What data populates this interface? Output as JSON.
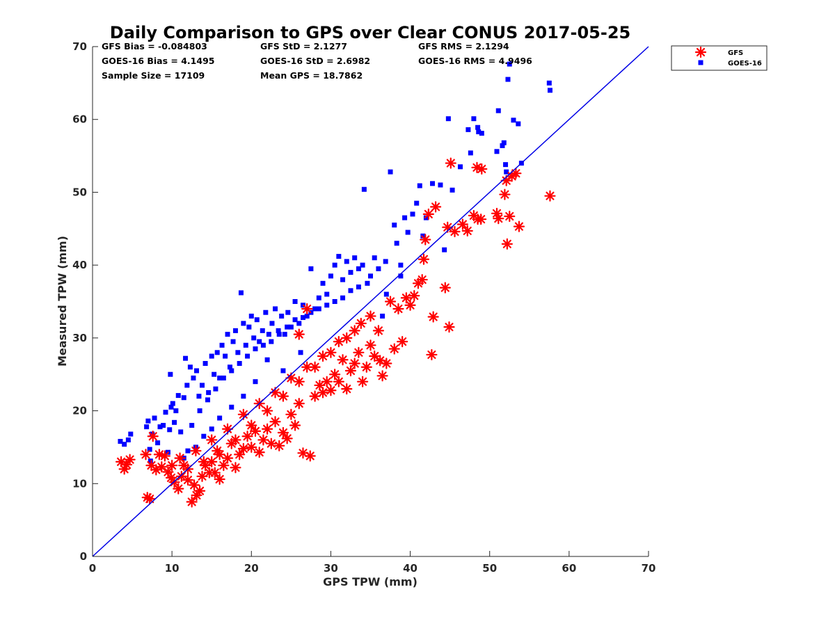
{
  "chart_data": {
    "type": "scatter",
    "title": "Daily Comparison to GPS over Clear CONUS 2017-05-25",
    "xlabel": "GPS TPW (mm)",
    "ylabel": "Measured TPW (mm)",
    "xlim": [
      0,
      70
    ],
    "ylim": [
      0,
      70
    ],
    "xticks": [
      "0",
      "10",
      "20",
      "30",
      "40",
      "50",
      "60",
      "70"
    ],
    "yticks": [
      "0",
      "10",
      "20",
      "30",
      "40",
      "50",
      "60",
      "70"
    ],
    "grid": false,
    "legend_position": "top-right, outside plot",
    "stats": [
      [
        "GFS Bias = -0.084803",
        "GFS StD = 2.1277",
        "GFS RMS = 2.1294"
      ],
      [
        "GOES-16 Bias = 4.1495",
        "GOES-16 StD = 2.6982",
        "GOES-16 RMS = 4.9496"
      ],
      [
        "Sample Size = 17109",
        "Mean GPS = 18.7862"
      ]
    ],
    "reference_line": {
      "name": "1:1 line",
      "color": "#0000e6",
      "points": [
        [
          0,
          0
        ],
        [
          70,
          70
        ]
      ]
    },
    "series": [
      {
        "name": "GOES-16",
        "marker": "square",
        "color": "#0000ff",
        "points": [
          [
            3.5,
            15.8
          ],
          [
            4.0,
            15.4
          ],
          [
            4.5,
            16.0
          ],
          [
            4.8,
            16.8
          ],
          [
            6.8,
            17.8
          ],
          [
            7.0,
            18.6
          ],
          [
            7.2,
            14.7
          ],
          [
            7.3,
            13.1
          ],
          [
            7.5,
            16.8
          ],
          [
            7.8,
            19.0
          ],
          [
            8.2,
            15.6
          ],
          [
            8.5,
            17.8
          ],
          [
            8.9,
            18.0
          ],
          [
            9.2,
            19.8
          ],
          [
            9.5,
            14.3
          ],
          [
            9.7,
            17.4
          ],
          [
            9.8,
            25.0
          ],
          [
            9.9,
            20.5
          ],
          [
            10.1,
            21.0
          ],
          [
            10.3,
            18.4
          ],
          [
            10.5,
            20.0
          ],
          [
            10.8,
            22.1
          ],
          [
            11.1,
            17.1
          ],
          [
            11.5,
            21.8
          ],
          [
            11.7,
            27.2
          ],
          [
            11.9,
            23.5
          ],
          [
            12.3,
            26.0
          ],
          [
            12.7,
            24.5
          ],
          [
            13.1,
            25.5
          ],
          [
            13.4,
            22.0
          ],
          [
            13.8,
            23.5
          ],
          [
            14.2,
            26.5
          ],
          [
            14.6,
            22.5
          ],
          [
            15.0,
            27.5
          ],
          [
            15.3,
            25.0
          ],
          [
            15.7,
            28.0
          ],
          [
            16.0,
            24.5
          ],
          [
            16.3,
            29.0
          ],
          [
            16.7,
            27.5
          ],
          [
            17.0,
            30.5
          ],
          [
            17.3,
            26.0
          ],
          [
            17.7,
            29.5
          ],
          [
            18.0,
            31.0
          ],
          [
            18.3,
            28.0
          ],
          [
            18.7,
            36.2
          ],
          [
            19.0,
            32.0
          ],
          [
            19.3,
            29.0
          ],
          [
            19.7,
            31.5
          ],
          [
            20.0,
            33.0
          ],
          [
            20.3,
            30.0
          ],
          [
            20.7,
            32.5
          ],
          [
            21.0,
            29.5
          ],
          [
            21.4,
            31.0
          ],
          [
            21.8,
            33.5
          ],
          [
            22.2,
            30.5
          ],
          [
            22.6,
            32.0
          ],
          [
            23.0,
            34.0
          ],
          [
            23.4,
            31.0
          ],
          [
            23.8,
            33.0
          ],
          [
            24.2,
            30.5
          ],
          [
            24.6,
            33.5
          ],
          [
            25.0,
            31.5
          ],
          [
            25.5,
            35.0
          ],
          [
            26.0,
            32.0
          ],
          [
            26.5,
            34.5
          ],
          [
            27.0,
            33.0
          ],
          [
            27.5,
            39.5
          ],
          [
            28.0,
            34.0
          ],
          [
            28.5,
            35.5
          ],
          [
            29.0,
            37.5
          ],
          [
            29.5,
            36.0
          ],
          [
            30.0,
            38.5
          ],
          [
            30.5,
            40.0
          ],
          [
            31.0,
            41.2
          ],
          [
            31.5,
            38.0
          ],
          [
            32.0,
            40.5
          ],
          [
            32.5,
            39.0
          ],
          [
            33.0,
            41.0
          ],
          [
            33.5,
            39.5
          ],
          [
            34.0,
            40.0
          ],
          [
            34.6,
            37.5
          ],
          [
            35.0,
            38.5
          ],
          [
            35.5,
            41.0
          ],
          [
            36.0,
            39.5
          ],
          [
            36.5,
            33.0
          ],
          [
            37.0,
            36.0
          ],
          [
            37.5,
            52.8
          ],
          [
            38.0,
            45.5
          ],
          [
            38.3,
            43.0
          ],
          [
            38.8,
            40.0
          ],
          [
            39.3,
            46.5
          ],
          [
            39.7,
            44.5
          ],
          [
            40.3,
            47.0
          ],
          [
            40.8,
            48.5
          ],
          [
            41.2,
            50.9
          ],
          [
            41.6,
            44.0
          ],
          [
            42.0,
            46.5
          ],
          [
            42.8,
            51.2
          ],
          [
            43.8,
            51.0
          ],
          [
            44.3,
            42.1
          ],
          [
            44.8,
            60.1
          ],
          [
            45.3,
            50.3
          ],
          [
            46.3,
            53.5
          ],
          [
            47.3,
            58.6
          ],
          [
            47.6,
            55.4
          ],
          [
            48.0,
            60.1
          ],
          [
            48.5,
            58.9
          ],
          [
            48.6,
            58.3
          ],
          [
            49.0,
            58.1
          ],
          [
            50.9,
            55.6
          ],
          [
            51.1,
            61.2
          ],
          [
            51.6,
            56.4
          ],
          [
            51.8,
            56.8
          ],
          [
            52.0,
            53.8
          ],
          [
            52.1,
            52.8
          ],
          [
            52.3,
            65.5
          ],
          [
            52.5,
            67.6
          ],
          [
            53.0,
            59.9
          ],
          [
            53.6,
            59.4
          ],
          [
            54.0,
            54.0
          ],
          [
            57.5,
            65.0
          ],
          [
            57.6,
            64.0
          ],
          [
            34.2,
            50.4
          ],
          [
            36.9,
            40.5
          ],
          [
            38.8,
            38.5
          ],
          [
            26.2,
            28.0
          ],
          [
            24.0,
            25.5
          ],
          [
            22.0,
            27.0
          ],
          [
            20.5,
            24.0
          ],
          [
            19.0,
            22.0
          ],
          [
            17.5,
            20.5
          ],
          [
            16.0,
            19.0
          ],
          [
            15.0,
            17.5
          ],
          [
            14.0,
            16.5
          ],
          [
            13.0,
            15.0
          ],
          [
            12.0,
            14.5
          ],
          [
            11.5,
            13.5
          ],
          [
            12.5,
            18.0
          ],
          [
            13.5,
            20.0
          ],
          [
            14.5,
            21.5
          ],
          [
            15.5,
            23.0
          ],
          [
            16.5,
            24.5
          ],
          [
            17.5,
            25.5
          ],
          [
            18.5,
            26.5
          ],
          [
            19.5,
            27.5
          ],
          [
            20.5,
            28.5
          ],
          [
            21.5,
            29.0
          ],
          [
            22.5,
            29.5
          ],
          [
            23.5,
            30.5
          ],
          [
            24.5,
            31.5
          ],
          [
            25.5,
            32.5
          ],
          [
            26.5,
            32.8
          ],
          [
            27.5,
            33.5
          ],
          [
            28.5,
            34.0
          ],
          [
            29.5,
            34.5
          ],
          [
            30.5,
            35.0
          ],
          [
            31.5,
            35.5
          ],
          [
            32.5,
            36.5
          ],
          [
            33.5,
            37.0
          ]
        ]
      },
      {
        "name": "GFS",
        "marker": "asterisk",
        "color": "#ff0000",
        "points": [
          [
            3.6,
            13.0
          ],
          [
            4.0,
            12.0
          ],
          [
            4.3,
            12.6
          ],
          [
            4.7,
            13.3
          ],
          [
            6.7,
            14.0
          ],
          [
            6.9,
            8.1
          ],
          [
            7.2,
            7.9
          ],
          [
            7.4,
            12.5
          ],
          [
            7.6,
            16.5
          ],
          [
            8.0,
            11.9
          ],
          [
            8.4,
            14.0
          ],
          [
            8.7,
            12.3
          ],
          [
            9.1,
            13.8
          ],
          [
            9.5,
            11.6
          ],
          [
            9.9,
            10.8
          ],
          [
            10.3,
            10.2
          ],
          [
            10.8,
            9.3
          ],
          [
            11.2,
            11.0
          ],
          [
            11.5,
            12.5
          ],
          [
            12.0,
            10.5
          ],
          [
            12.5,
            7.5
          ],
          [
            12.8,
            9.8
          ],
          [
            13.1,
            8.4
          ],
          [
            13.5,
            9.0
          ],
          [
            13.8,
            11.0
          ],
          [
            14.2,
            12.5
          ],
          [
            14.7,
            11.5
          ],
          [
            15.0,
            13.0
          ],
          [
            15.4,
            11.5
          ],
          [
            15.7,
            14.5
          ],
          [
            16.0,
            10.6
          ],
          [
            16.5,
            12.5
          ],
          [
            17.0,
            13.5
          ],
          [
            17.5,
            15.5
          ],
          [
            18.0,
            12.2
          ],
          [
            18.5,
            14.0
          ],
          [
            19.0,
            14.8
          ],
          [
            19.5,
            16.5
          ],
          [
            20.0,
            15.0
          ],
          [
            20.5,
            17.2
          ],
          [
            21.0,
            14.3
          ],
          [
            21.5,
            16.0
          ],
          [
            22.0,
            17.5
          ],
          [
            22.5,
            15.5
          ],
          [
            23.0,
            18.5
          ],
          [
            23.5,
            15.2
          ],
          [
            24.0,
            17.0
          ],
          [
            24.5,
            16.2
          ],
          [
            25.0,
            19.5
          ],
          [
            25.5,
            18.0
          ],
          [
            26.0,
            21.0
          ],
          [
            26.5,
            14.2
          ],
          [
            27.4,
            13.8
          ],
          [
            28.0,
            22.0
          ],
          [
            28.6,
            23.5
          ],
          [
            29.0,
            22.5
          ],
          [
            29.5,
            24.0
          ],
          [
            30.0,
            22.8
          ],
          [
            30.5,
            25.0
          ],
          [
            31.0,
            24.0
          ],
          [
            31.5,
            27.0
          ],
          [
            32.0,
            23.0
          ],
          [
            32.5,
            25.5
          ],
          [
            33.0,
            26.5
          ],
          [
            33.5,
            28.0
          ],
          [
            34.0,
            24.0
          ],
          [
            34.5,
            26.0
          ],
          [
            35.0,
            29.0
          ],
          [
            35.5,
            27.5
          ],
          [
            36.0,
            31.0
          ],
          [
            36.5,
            24.8
          ],
          [
            37.0,
            26.5
          ],
          [
            37.5,
            35.0
          ],
          [
            38.0,
            28.5
          ],
          [
            38.5,
            34.0
          ],
          [
            39.0,
            29.5
          ],
          [
            39.5,
            35.5
          ],
          [
            40.0,
            34.5
          ],
          [
            40.5,
            35.8
          ],
          [
            41.0,
            37.5
          ],
          [
            41.5,
            38.0
          ],
          [
            41.7,
            40.8
          ],
          [
            41.9,
            43.5
          ],
          [
            42.3,
            47.0
          ],
          [
            42.7,
            27.7
          ],
          [
            42.9,
            32.9
          ],
          [
            43.2,
            48.0
          ],
          [
            44.4,
            36.9
          ],
          [
            44.7,
            45.2
          ],
          [
            44.9,
            31.5
          ],
          [
            45.1,
            54.0
          ],
          [
            45.6,
            44.6
          ],
          [
            46.6,
            45.6
          ],
          [
            47.2,
            44.7
          ],
          [
            48.0,
            46.8
          ],
          [
            48.4,
            53.4
          ],
          [
            48.5,
            46.3
          ],
          [
            48.9,
            46.3
          ],
          [
            49.0,
            53.2
          ],
          [
            50.9,
            47.1
          ],
          [
            51.1,
            46.4
          ],
          [
            51.9,
            49.7
          ],
          [
            52.1,
            51.6
          ],
          [
            52.2,
            42.9
          ],
          [
            52.5,
            46.7
          ],
          [
            52.8,
            52.2
          ],
          [
            53.3,
            52.6
          ],
          [
            53.7,
            45.3
          ],
          [
            57.6,
            49.5
          ],
          [
            36.2,
            26.9
          ],
          [
            33.8,
            32.0
          ],
          [
            32.0,
            30.0
          ],
          [
            30.0,
            28.0
          ],
          [
            28.0,
            26.0
          ],
          [
            26.0,
            24.0
          ],
          [
            24.0,
            22.0
          ],
          [
            22.0,
            20.0
          ],
          [
            20.0,
            18.0
          ],
          [
            18.0,
            16.0
          ],
          [
            16.0,
            14.0
          ],
          [
            14.0,
            13.0
          ],
          [
            12.0,
            12.0
          ],
          [
            10.0,
            12.5
          ],
          [
            11.0,
            13.5
          ],
          [
            13.0,
            14.5
          ],
          [
            15.0,
            16.0
          ],
          [
            17.0,
            17.5
          ],
          [
            19.0,
            19.5
          ],
          [
            21.0,
            21.0
          ],
          [
            23.0,
            22.5
          ],
          [
            25.0,
            24.5
          ],
          [
            27.0,
            26.0
          ],
          [
            29.0,
            27.5
          ],
          [
            31.0,
            29.5
          ],
          [
            33.0,
            31.0
          ],
          [
            35.0,
            33.0
          ],
          [
            27.0,
            34.0
          ],
          [
            26.0,
            30.5
          ]
        ]
      }
    ]
  }
}
